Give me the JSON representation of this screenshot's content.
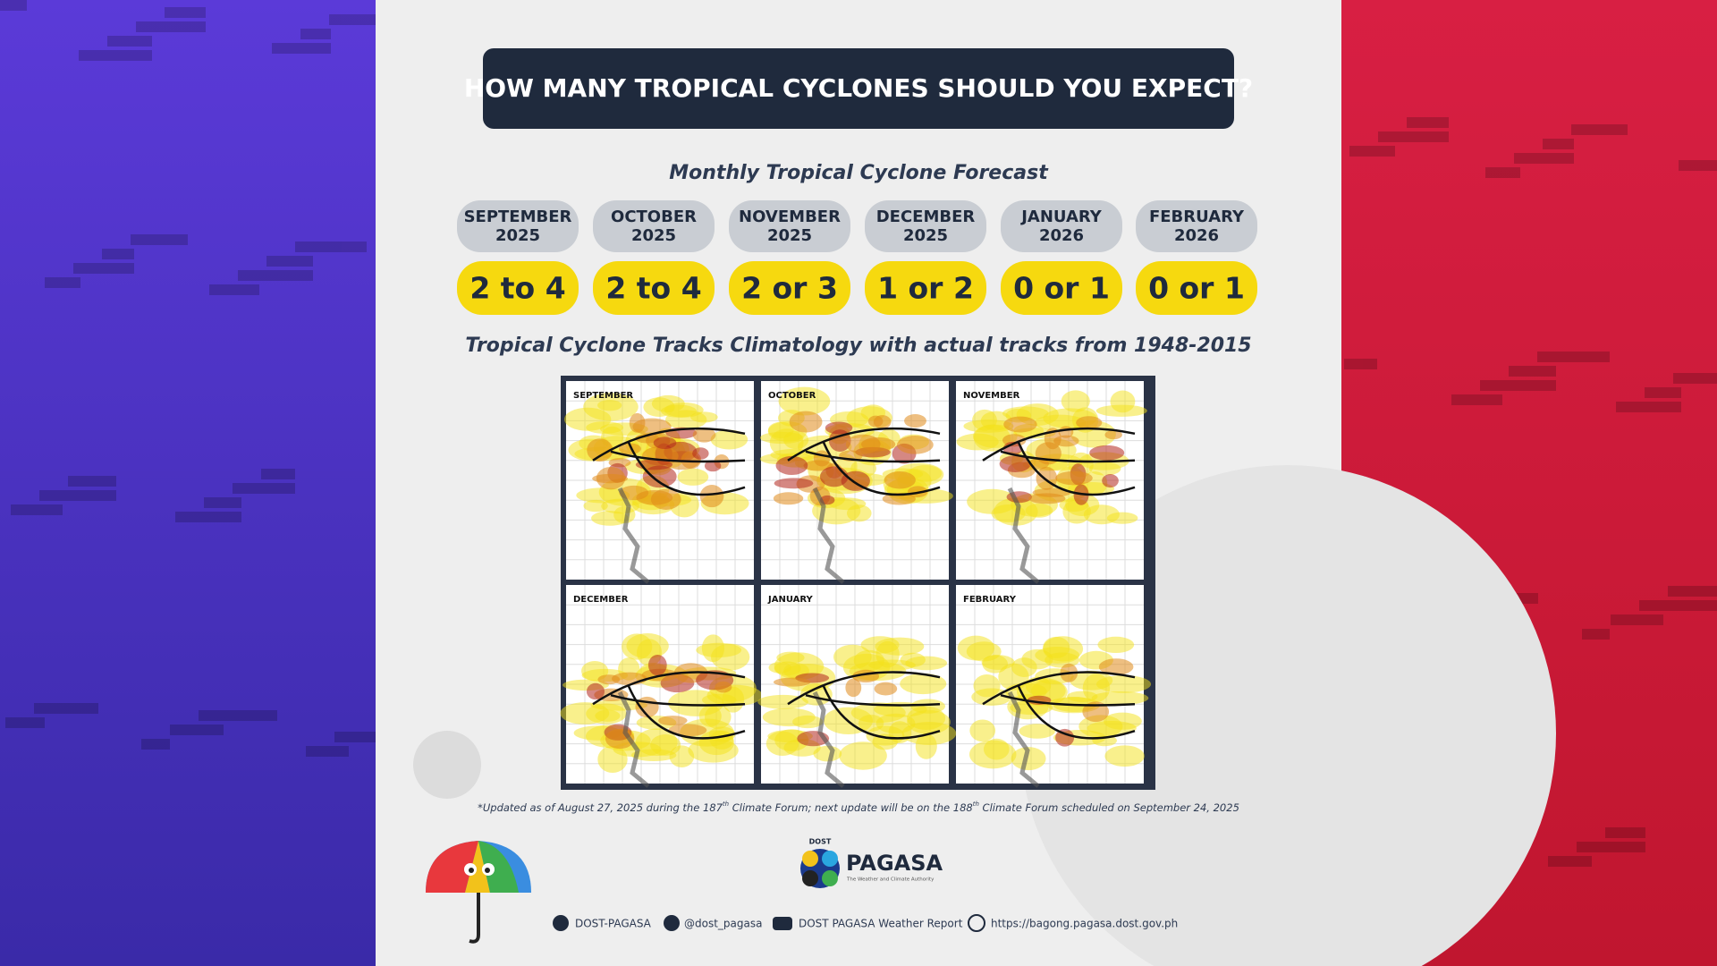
{
  "header": {
    "title": "HOW MANY TROPICAL CYCLONES SHOULD YOU EXPECT?"
  },
  "forecast": {
    "subtitle": "Monthly Tropical Cyclone Forecast",
    "months": [
      {
        "month": "SEPTEMBER",
        "year": "2025",
        "count": "2 to 4"
      },
      {
        "month": "OCTOBER",
        "year": "2025",
        "count": "2 to 4"
      },
      {
        "month": "NOVEMBER",
        "year": "2025",
        "count": "2 or 3"
      },
      {
        "month": "DECEMBER",
        "year": "2025",
        "count": "1 or 2"
      },
      {
        "month": "JANUARY",
        "year": "2026",
        "count": "0 or 1"
      },
      {
        "month": "FEBRUARY",
        "year": "2026",
        "count": "0 or 1"
      }
    ]
  },
  "climatology": {
    "title": "Tropical Cyclone Tracks Climatology with actual tracks from 1948-2015",
    "maps": [
      "SEPTEMBER",
      "OCTOBER",
      "NOVEMBER",
      "DECEMBER",
      "JANUARY",
      "FEBRUARY"
    ]
  },
  "footnote": [
    "*Updated as of August 27, 2025 during the 187",
    "th",
    " Climate Forum; next update will be on the 188",
    "th",
    " Climate Forum scheduled on September 24, 2025"
  ],
  "logo": {
    "agency": "DOST",
    "name": "PAGASA",
    "tagline": "The Weather and Climate Authority"
  },
  "social": [
    "DOST-PAGASA",
    "@dost_pagasa",
    "DOST PAGASA Weather Report",
    "https://bagong.pagasa.dost.gov.ph"
  ]
}
